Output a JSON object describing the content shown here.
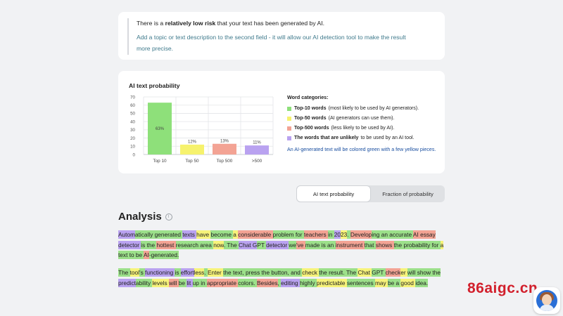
{
  "risk": {
    "prefix": "There is a ",
    "emphasis": "relatively low risk",
    "suffix": " that your text has been generated by AI.",
    "hint_line1": "Add a topic or text description to the second field - it will allow our AI detection tool to make the result",
    "hint_line2": "more precise."
  },
  "chart_data": {
    "type": "bar",
    "title": "AI text probability",
    "categories": [
      "Top 10",
      "Top 50",
      "Top 500",
      ">500"
    ],
    "values": [
      63,
      12,
      13,
      11
    ],
    "value_labels": [
      "63%",
      "12%",
      "13%",
      "11%"
    ],
    "colors": [
      "#8ee07a",
      "#f6f26d",
      "#f3a394",
      "#b9a2f0"
    ],
    "ylim": [
      0,
      70
    ],
    "yticks": [
      0,
      10,
      20,
      30,
      40,
      50,
      60,
      70
    ],
    "grid": true
  },
  "legend": {
    "title": "Word categories:",
    "items": [
      {
        "color": "#8ee07a",
        "name": "Top-10 words",
        "desc": "(most likely to be used by AI generators)."
      },
      {
        "color": "#f6f26d",
        "name": "Top-50 words",
        "desc": "(AI generators can use them)."
      },
      {
        "color": "#f3a394",
        "name": "Top-500 words",
        "desc": "(less likely to be used by AI)."
      },
      {
        "color": "#b9a2f0",
        "name": "The words that are unlikely",
        "desc": "to be used by an AI tool."
      }
    ],
    "note": "An AI-generated text will be colored green with a few yellow pieces."
  },
  "tabs": {
    "active": "AI text probability",
    "inactive": "Fraction of probability"
  },
  "analysis": {
    "heading": "Analysis",
    "info": "i"
  },
  "para1": [
    [
      "Autom",
      "p"
    ],
    [
      "atically ",
      "g"
    ],
    [
      "generated ",
      "g"
    ],
    [
      "texts ",
      "p"
    ],
    [
      "have ",
      "y"
    ],
    [
      "become ",
      "g"
    ],
    [
      "a ",
      "y"
    ],
    [
      "considerable ",
      "r"
    ],
    [
      "problem ",
      "g"
    ],
    [
      "for ",
      "g"
    ],
    [
      "teachers ",
      "r"
    ],
    [
      "in ",
      "g"
    ],
    [
      "20",
      "p"
    ],
    [
      "23",
      "y"
    ],
    [
      ". ",
      "g"
    ],
    [
      "Develop",
      "r"
    ],
    [
      "ing ",
      "g"
    ],
    [
      "an ",
      "g"
    ],
    [
      "accurate ",
      "g"
    ],
    [
      "AI ",
      "r"
    ],
    [
      "essay ",
      "r"
    ],
    [
      "detector ",
      "p"
    ],
    [
      "is ",
      "g"
    ],
    [
      "the ",
      "g"
    ],
    [
      "hottest ",
      "r"
    ],
    [
      "research ",
      "g"
    ],
    [
      "area ",
      "g"
    ],
    [
      "now",
      "y"
    ],
    [
      ". ",
      "g"
    ],
    [
      "The ",
      "g"
    ],
    [
      "Chat ",
      "p"
    ],
    [
      "G",
      "p"
    ],
    [
      "PT ",
      "g"
    ],
    [
      "detector ",
      "p"
    ],
    [
      "we",
      "g"
    ],
    [
      "'ve ",
      "r"
    ],
    [
      "made ",
      "g"
    ],
    [
      "is ",
      "g"
    ],
    [
      "an ",
      "g"
    ],
    [
      "instrument ",
      "r"
    ],
    [
      "that ",
      "g"
    ],
    [
      "shows ",
      "r"
    ],
    [
      "the ",
      "g"
    ],
    [
      "probability ",
      "g"
    ],
    [
      "for ",
      "g"
    ],
    [
      "a ",
      "y"
    ],
    [
      "text ",
      "g"
    ],
    [
      "to ",
      "g"
    ],
    [
      "be ",
      "g"
    ],
    [
      "AI",
      "r"
    ],
    [
      "-",
      "g"
    ],
    [
      "generated",
      "g"
    ],
    [
      ".",
      "g"
    ]
  ],
  "para2": [
    [
      "The ",
      "g"
    ],
    [
      "tool",
      "y"
    ],
    [
      "'s ",
      "g"
    ],
    [
      "functioning ",
      "p"
    ],
    [
      "is ",
      "g"
    ],
    [
      "effort",
      "p"
    ],
    [
      "less",
      "y"
    ],
    [
      ". ",
      "g"
    ],
    [
      "Enter ",
      "y"
    ],
    [
      "the ",
      "g"
    ],
    [
      "text",
      "g"
    ],
    [
      ", ",
      "g"
    ],
    [
      "press ",
      "g"
    ],
    [
      "the ",
      "g"
    ],
    [
      "button",
      "g"
    ],
    [
      ", ",
      "g"
    ],
    [
      "and ",
      "g"
    ],
    [
      "check ",
      "y"
    ],
    [
      "the ",
      "g"
    ],
    [
      "result",
      "g"
    ],
    [
      ". ",
      "g"
    ],
    [
      "The ",
      "g"
    ],
    [
      "Chat ",
      "y"
    ],
    [
      "G",
      "g"
    ],
    [
      "PT ",
      "g"
    ],
    [
      "check",
      "r"
    ],
    [
      "er ",
      "y"
    ],
    [
      "will ",
      "g"
    ],
    [
      "show ",
      "g"
    ],
    [
      "the ",
      "g"
    ],
    [
      "predict",
      "p"
    ],
    [
      "ability ",
      "g"
    ],
    [
      "levels ",
      "y"
    ],
    [
      "will ",
      "r"
    ],
    [
      "be ",
      "g"
    ],
    [
      "lit ",
      "p"
    ],
    [
      "up ",
      "g"
    ],
    [
      "in ",
      "g"
    ],
    [
      "appropriate ",
      "r"
    ],
    [
      "colors",
      "g"
    ],
    [
      ". ",
      "g"
    ],
    [
      "Besides",
      "r"
    ],
    [
      ", ",
      "g"
    ],
    [
      "editing ",
      "p"
    ],
    [
      "highly ",
      "g"
    ],
    [
      "predictable ",
      "y"
    ],
    [
      "sentences ",
      "g"
    ],
    [
      "may ",
      "y"
    ],
    [
      "be ",
      "g"
    ],
    [
      "a ",
      "g"
    ],
    [
      "good ",
      "y"
    ],
    [
      "idea",
      "g"
    ],
    [
      ".",
      "g"
    ]
  ],
  "watermark": "86aigc.cn"
}
